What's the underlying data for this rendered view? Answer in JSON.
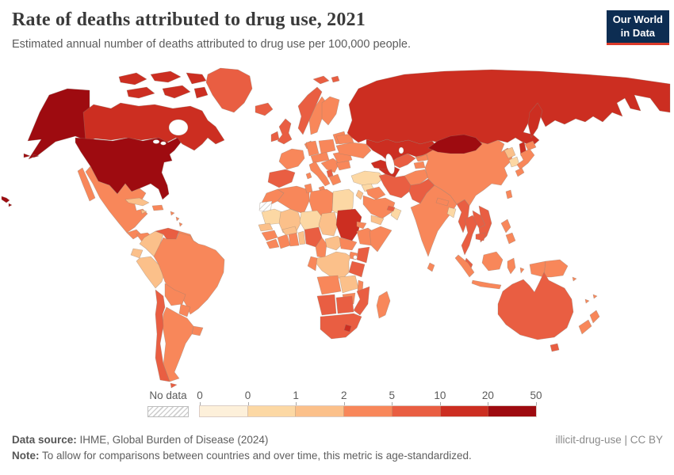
{
  "header": {
    "title": "Rate of deaths attributed to drug use, 2021",
    "subtitle": "Estimated annual number of deaths attributed to drug use per 100,000 people."
  },
  "logo": {
    "line1": "Our World",
    "line2": "in Data",
    "bg_color": "#0d2d52",
    "accent_color": "#dc3a2a"
  },
  "legend": {
    "no_data_label": "No data",
    "tick_labels": [
      "0",
      "0",
      "1",
      "2",
      "5",
      "10",
      "20",
      "50"
    ],
    "bin_colors": [
      "#fdf0da",
      "#fcd8a4",
      "#fbc08a",
      "#f8875a",
      "#e95e42",
      "#cc2e21",
      "#9e0b10"
    ]
  },
  "footer": {
    "source_label": "Data source:",
    "source_text": " IHME, Global Burden of Disease (2024)",
    "note_label": "Note:",
    "note_text": " To allow for comparisons between countries and over time, this metric is age-standardized.",
    "attribution": "illicit-drug-use | CC BY"
  },
  "chart_data": {
    "type": "choropleth_map",
    "title": "Rate of deaths attributed to drug use, 2021",
    "metric": "Estimated annual number of deaths attributed to drug use per 100,000 people (age-standardized)",
    "year": "2021",
    "legend_bins": [
      {
        "range": "0-0",
        "color": "#fdf0da"
      },
      {
        "range": "0-1",
        "color": "#fcd8a4"
      },
      {
        "range": "1-2",
        "color": "#fbc08a"
      },
      {
        "range": "2-5",
        "color": "#f8875a"
      },
      {
        "range": "5-10",
        "color": "#e95e42"
      },
      {
        "range": "10-20",
        "color": "#cc2e21"
      },
      {
        "range": "20-50",
        "color": "#9e0b10"
      }
    ],
    "no_data_regions": [
      "Western Sahara",
      "French Guiana"
    ],
    "regions": {
      "united-states": {
        "name": "United States",
        "bin": 6
      },
      "canada": {
        "name": "Canada",
        "bin": 5
      },
      "greenland": {
        "name": "Greenland",
        "bin": 4
      },
      "mexico": {
        "name": "Mexico",
        "bin": 3
      },
      "guatemala": {
        "name": "Guatemala",
        "bin": 3
      },
      "honduras-nicaragua": {
        "name": "Honduras / Nicaragua",
        "bin": 3
      },
      "costa-rica-panama": {
        "name": "Costa Rica / Panama",
        "bin": 3
      },
      "cuba": {
        "name": "Cuba",
        "bin": 2
      },
      "hispaniola": {
        "name": "Haiti / Dominican Republic",
        "bin": 3
      },
      "jamaica": {
        "name": "Jamaica",
        "bin": 2
      },
      "caribbean": {
        "name": "Lesser Antilles",
        "bin": 3
      },
      "colombia": {
        "name": "Colombia",
        "bin": 2
      },
      "venezuela": {
        "name": "Venezuela",
        "bin": 4
      },
      "guyana-suriname": {
        "name": "Guyana / Suriname",
        "bin": 3
      },
      "french-guiana": {
        "name": "French Guiana",
        "bin": "no-data"
      },
      "ecuador": {
        "name": "Ecuador",
        "bin": 2
      },
      "peru": {
        "name": "Peru",
        "bin": 2
      },
      "brazil": {
        "name": "Brazil",
        "bin": 3
      },
      "bolivia": {
        "name": "Bolivia",
        "bin": 3
      },
      "paraguay": {
        "name": "Paraguay",
        "bin": 3
      },
      "uruguay": {
        "name": "Uruguay",
        "bin": 3
      },
      "argentina": {
        "name": "Argentina",
        "bin": 3
      },
      "chile": {
        "name": "Chile",
        "bin": 4
      },
      "iceland": {
        "name": "Iceland",
        "bin": 4
      },
      "svalbard": {
        "name": "Svalbard",
        "bin": 4
      },
      "norway": {
        "name": "Norway",
        "bin": 4
      },
      "sweden": {
        "name": "Sweden",
        "bin": 3
      },
      "finland": {
        "name": "Finland",
        "bin": 3
      },
      "denmark": {
        "name": "Denmark",
        "bin": 3
      },
      "baltic-states": {
        "name": "Baltic states",
        "bin": 3
      },
      "uk": {
        "name": "United Kingdom",
        "bin": 4
      },
      "ireland": {
        "name": "Ireland",
        "bin": 4
      },
      "france": {
        "name": "France",
        "bin": 3
      },
      "spain": {
        "name": "Spain / Portugal",
        "bin": 4
      },
      "germany": {
        "name": "Germany",
        "bin": 3
      },
      "poland": {
        "name": "Poland",
        "bin": 3
      },
      "czechia-austria": {
        "name": "Central Europe",
        "bin": 3
      },
      "italy": {
        "name": "Italy",
        "bin": 3
      },
      "balkans": {
        "name": "Balkans",
        "bin": 3
      },
      "albania": {
        "name": "Albania",
        "bin": 4
      },
      "greece": {
        "name": "Greece",
        "bin": 3
      },
      "romania": {
        "name": "Romania",
        "bin": 3
      },
      "bulgaria": {
        "name": "Bulgaria",
        "bin": 3
      },
      "ukraine": {
        "name": "Ukraine",
        "bin": 3
      },
      "belarus": {
        "name": "Belarus",
        "bin": 3
      },
      "russia": {
        "name": "Russia",
        "bin": 5
      },
      "kazakhstan": {
        "name": "Kazakhstan",
        "bin": 5
      },
      "uzbekistan": {
        "name": "Uzbekistan",
        "bin": 4
      },
      "turkmenistan": {
        "name": "Turkmenistan",
        "bin": 5
      },
      "kyrgyzstan": {
        "name": "Kyrgyzstan",
        "bin": 3
      },
      "tajikistan": {
        "name": "Tajikistan",
        "bin": 3
      },
      "caucasus": {
        "name": "Caucasus",
        "bin": 5
      },
      "turkey": {
        "name": "Turkey",
        "bin": 1
      },
      "syria": {
        "name": "Syria",
        "bin": 1
      },
      "iraq": {
        "name": "Iraq",
        "bin": 3
      },
      "jordan-israel": {
        "name": "Jordan / Israel",
        "bin": 2
      },
      "saudi-arabia": {
        "name": "Saudi Arabia",
        "bin": 3
      },
      "yemen": {
        "name": "Yemen",
        "bin": 2
      },
      "oman": {
        "name": "Oman",
        "bin": 1
      },
      "uae": {
        "name": "United Arab Emirates",
        "bin": 4
      },
      "iran": {
        "name": "Iran",
        "bin": 4
      },
      "afghanistan": {
        "name": "Afghanistan",
        "bin": 3
      },
      "pakistan": {
        "name": "Pakistan",
        "bin": 4
      },
      "india": {
        "name": "India",
        "bin": 3
      },
      "nepal": {
        "name": "Nepal",
        "bin": 3
      },
      "bangladesh": {
        "name": "Bangladesh",
        "bin": 1
      },
      "sri-lanka": {
        "name": "Sri Lanka",
        "bin": 3
      },
      "myanmar": {
        "name": "Myanmar",
        "bin": 4
      },
      "thailand": {
        "name": "Thailand",
        "bin": 4
      },
      "laos": {
        "name": "Laos",
        "bin": 4
      },
      "vietnam": {
        "name": "Vietnam",
        "bin": 4
      },
      "cambodia": {
        "name": "Cambodia",
        "bin": 4
      },
      "malaysia": {
        "name": "Malaysia",
        "bin": 4
      },
      "china": {
        "name": "China",
        "bin": 3
      },
      "mongolia": {
        "name": "Mongolia",
        "bin": 6
      },
      "north-korea": {
        "name": "North Korea",
        "bin": 2
      },
      "south-korea": {
        "name": "South Korea",
        "bin": 1
      },
      "japan": {
        "name": "Japan",
        "bin": 3
      },
      "taiwan": {
        "name": "Taiwan",
        "bin": 3
      },
      "philippines": {
        "name": "Philippines",
        "bin": 3
      },
      "indonesia": {
        "name": "Indonesia",
        "bin": 3
      },
      "papua-new-guinea": {
        "name": "Papua New Guinea",
        "bin": 3
      },
      "australia": {
        "name": "Australia",
        "bin": 4
      },
      "new-zealand": {
        "name": "New Zealand",
        "bin": 3
      },
      "pacific-islands": {
        "name": "Pacific islands",
        "bin": 3
      },
      "morocco": {
        "name": "Morocco",
        "bin": 3
      },
      "algeria": {
        "name": "Algeria",
        "bin": 3
      },
      "tunisia": {
        "name": "Tunisia",
        "bin": 3
      },
      "libya": {
        "name": "Libya",
        "bin": 3
      },
      "egypt": {
        "name": "Egypt",
        "bin": 1
      },
      "western-sahara": {
        "name": "Western Sahara",
        "bin": "no-data"
      },
      "mauritania": {
        "name": "Mauritania",
        "bin": 1
      },
      "mali": {
        "name": "Mali",
        "bin": 2
      },
      "niger": {
        "name": "Niger",
        "bin": 1
      },
      "chad": {
        "name": "Chad",
        "bin": 2
      },
      "sudan": {
        "name": "Sudan",
        "bin": 5
      },
      "eritrea": {
        "name": "Eritrea",
        "bin": 3
      },
      "ethiopia": {
        "name": "Ethiopia",
        "bin": 3
      },
      "somalia": {
        "name": "Somalia",
        "bin": 3
      },
      "senegal": {
        "name": "Senegal",
        "bin": 2
      },
      "guinea": {
        "name": "Guinea",
        "bin": 3
      },
      "sierra-leone-liberia": {
        "name": "Sierra Leone / Liberia",
        "bin": 3
      },
      "ivory-coast": {
        "name": "Côte d'Ivoire",
        "bin": 3
      },
      "ghana": {
        "name": "Ghana",
        "bin": 3
      },
      "burkina-faso": {
        "name": "Burkina Faso",
        "bin": 2
      },
      "togo-benin": {
        "name": "Togo / Benin",
        "bin": 2
      },
      "nigeria": {
        "name": "Nigeria",
        "bin": 4
      },
      "cameroon": {
        "name": "Cameroon",
        "bin": 3
      },
      "central-african-republic": {
        "name": "Central African Republic",
        "bin": 2
      },
      "south-sudan": {
        "name": "South Sudan",
        "bin": 3
      },
      "uganda": {
        "name": "Uganda",
        "bin": 3
      },
      "kenya": {
        "name": "Kenya",
        "bin": 4
      },
      "tanzania": {
        "name": "Tanzania",
        "bin": 4
      },
      "drc": {
        "name": "Democratic Republic of Congo",
        "bin": 2
      },
      "gabon-congo": {
        "name": "Gabon / Congo",
        "bin": 3
      },
      "angola": {
        "name": "Angola",
        "bin": 3
      },
      "zambia": {
        "name": "Zambia",
        "bin": 2
      },
      "malawi": {
        "name": "Malawi",
        "bin": 3
      },
      "mozambique": {
        "name": "Mozambique",
        "bin": 4
      },
      "zimbabwe": {
        "name": "Zimbabwe",
        "bin": 3
      },
      "namibia": {
        "name": "Namibia",
        "bin": 4
      },
      "botswana": {
        "name": "Botswana",
        "bin": 4
      },
      "south-africa": {
        "name": "South Africa",
        "bin": 4
      },
      "lesotho": {
        "name": "Lesotho",
        "bin": 5
      },
      "madagascar": {
        "name": "Madagascar",
        "bin": 3
      }
    }
  }
}
